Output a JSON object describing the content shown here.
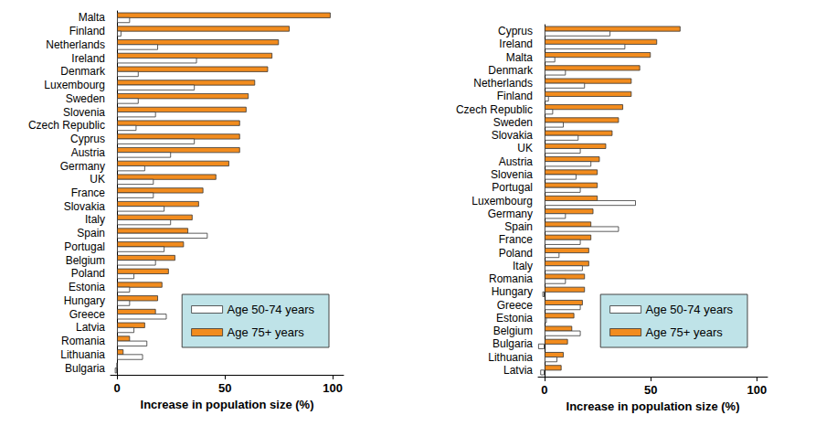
{
  "chart_data": [
    {
      "type": "bar",
      "orientation": "horizontal",
      "xlabel": "Increase in population size (%)",
      "categories": [
        "Malta",
        "Finland",
        "Netherlands",
        "Ireland",
        "Denmark",
        "Luxembourg",
        "Sweden",
        "Slovenia",
        "Czech Republic",
        "Cyprus",
        "Austria",
        "Germany",
        "UK",
        "France",
        "Slovakia",
        "Italy",
        "Spain",
        "Portugal",
        "Belgium",
        "Poland",
        "Estonia",
        "Hungary",
        "Greece",
        "Latvia",
        "Romania",
        "Lithuania",
        "Bulgaria"
      ],
      "series": [
        {
          "name": "Age 50-74 years",
          "color": "#ffffff",
          "values": [
            6,
            2,
            19,
            37,
            10,
            36,
            10,
            18,
            9,
            36,
            25,
            13,
            17,
            17,
            22,
            25,
            42,
            22,
            18,
            8,
            6,
            6,
            23,
            8,
            14,
            12,
            -1
          ]
        },
        {
          "name": "Age 75+ years",
          "color": "#f28c1e",
          "values": [
            99,
            80,
            75,
            72,
            70,
            64,
            61,
            60,
            57,
            57,
            57,
            52,
            46,
            40,
            38,
            35,
            33,
            31,
            27,
            24,
            21,
            19,
            18,
            13,
            6,
            3,
            0
          ]
        }
      ],
      "xlim": [
        -3,
        105
      ],
      "xticks": [
        0,
        50,
        100
      ],
      "legend": "lower right",
      "grid": false
    },
    {
      "type": "bar",
      "orientation": "horizontal",
      "xlabel": "Increase in population size (%)",
      "categories": [
        "Cyprus",
        "Ireland",
        "Malta",
        "Denmark",
        "Netherlands",
        "Finland",
        "Czech Republic",
        "Sweden",
        "Slovakia",
        "UK",
        "Austria",
        "Slovenia",
        "Portugal",
        "Luxembourg",
        "Germany",
        "Spain",
        "France",
        "Poland",
        "Italy",
        "Romania",
        "Hungary",
        "Greece",
        "Estonia",
        "Belgium",
        "Bulgaria",
        "Lithuania",
        "Latvia"
      ],
      "series": [
        {
          "name": "Age 50-74 years",
          "color": "#ffffff",
          "values": [
            31,
            38,
            5,
            10,
            19,
            2,
            4,
            9,
            16,
            17,
            22,
            15,
            17,
            43,
            10,
            35,
            17,
            7,
            18,
            10,
            -1,
            17,
            1,
            17,
            -3,
            6,
            -2
          ]
        },
        {
          "name": "Age 75+ years",
          "color": "#f28c1e",
          "values": [
            64,
            53,
            50,
            45,
            41,
            41,
            37,
            35,
            32,
            29,
            26,
            25,
            25,
            25,
            23,
            22,
            22,
            21,
            21,
            19,
            19,
            18,
            14,
            13,
            11,
            9,
            8
          ]
        }
      ],
      "xlim": [
        -3,
        105
      ],
      "xticks": [
        0,
        50,
        100
      ],
      "legend": "lower right",
      "grid": false
    }
  ]
}
